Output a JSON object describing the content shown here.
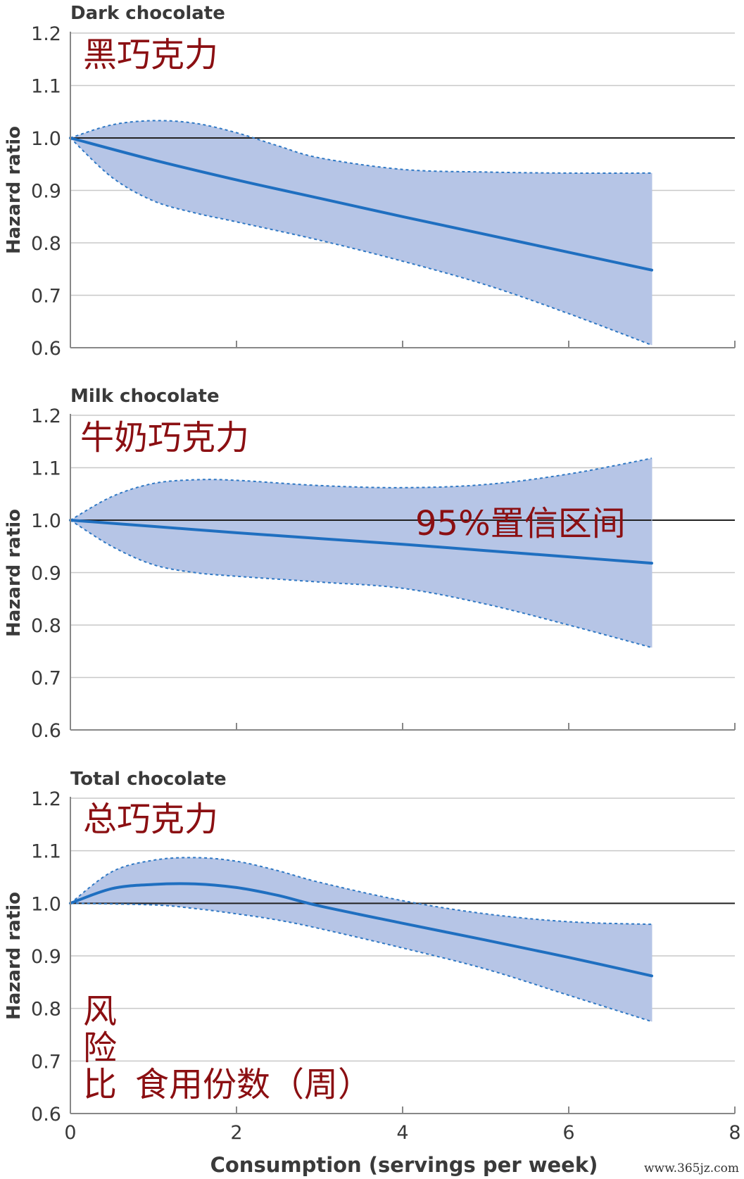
{
  "colors": {
    "band_fill": "#b6c5e6",
    "ci_line": "#2f78c4",
    "estimate_line": "#1f6fc0",
    "reference_line": "#222222",
    "grid": "#c8c8c8",
    "axis": "#888888",
    "text": "#3a3a3a",
    "annotation": "#8b0f12"
  },
  "x_axis": {
    "label": "Consumption (servings per week)",
    "range": [
      0,
      8
    ],
    "ticks": [
      0,
      2,
      4,
      6,
      8
    ],
    "tick_labels": [
      "0",
      "2",
      "4",
      "6",
      "8"
    ]
  },
  "watermark": "www.365jz.com",
  "chart_data": [
    {
      "type": "line",
      "title": "Dark chocolate",
      "annotation": "黑巧克力",
      "xlabel": "",
      "ylabel": "Hazard ratio",
      "xlim": [
        0,
        8
      ],
      "ylim": [
        0.6,
        1.2
      ],
      "yticks": [
        0.6,
        0.7,
        0.8,
        0.9,
        1.0,
        1.1,
        1.2
      ],
      "ytick_labels": [
        "0.6",
        "0.7",
        "0.8",
        "0.9",
        "1.0",
        "1.1",
        "1.2"
      ],
      "reference_line": 1.0,
      "grid": true,
      "estimate": {
        "x": [
          0,
          1,
          2,
          3,
          4,
          5,
          6,
          7
        ],
        "y": [
          1.0,
          0.958,
          0.92,
          0.885,
          0.85,
          0.816,
          0.782,
          0.748
        ]
      },
      "ci_upper": {
        "x": [
          0,
          0.5,
          1,
          1.5,
          2,
          2.5,
          3,
          4,
          5,
          6,
          7
        ],
        "y": [
          1.0,
          1.025,
          1.033,
          1.028,
          1.01,
          0.985,
          0.962,
          0.94,
          0.935,
          0.933,
          0.933
        ]
      },
      "ci_lower": {
        "x": [
          0,
          0.5,
          1,
          1.5,
          2,
          3,
          4,
          5,
          6,
          7
        ],
        "y": [
          1.0,
          0.925,
          0.88,
          0.857,
          0.84,
          0.805,
          0.765,
          0.72,
          0.665,
          0.605
        ]
      }
    },
    {
      "type": "line",
      "title": "Milk chocolate",
      "annotation": "牛奶巧克力",
      "annotation2": "95%置信区间",
      "xlabel": "",
      "ylabel": "Hazard ratio",
      "xlim": [
        0,
        8
      ],
      "ylim": [
        0.6,
        1.2
      ],
      "yticks": [
        0.6,
        0.7,
        0.8,
        0.9,
        1.0,
        1.1,
        1.2
      ],
      "ytick_labels": [
        "0.6",
        "0.7",
        "0.8",
        "0.9",
        "1.0",
        "1.1",
        "1.2"
      ],
      "reference_line": 1.0,
      "grid": true,
      "estimate": {
        "x": [
          0,
          1,
          2,
          3,
          4,
          5,
          6,
          7
        ],
        "y": [
          1.0,
          0.988,
          0.976,
          0.965,
          0.954,
          0.942,
          0.93,
          0.918
        ]
      },
      "ci_upper": {
        "x": [
          0,
          0.5,
          1,
          1.5,
          2,
          3,
          4,
          5,
          6,
          7
        ],
        "y": [
          1.0,
          1.045,
          1.07,
          1.077,
          1.076,
          1.066,
          1.062,
          1.068,
          1.088,
          1.118
        ]
      },
      "ci_lower": {
        "x": [
          0,
          0.5,
          1,
          1.5,
          2,
          3,
          4,
          5,
          6,
          7
        ],
        "y": [
          1.0,
          0.95,
          0.915,
          0.9,
          0.893,
          0.882,
          0.87,
          0.84,
          0.8,
          0.757
        ]
      }
    },
    {
      "type": "line",
      "title": "Total chocolate",
      "annotation": "总巧克力",
      "annotation_lines": [
        "风",
        "险",
        "比"
      ],
      "annotation_x": "食用份数（周）",
      "xlabel": "Consumption (servings per week)",
      "ylabel": "Hazard ratio",
      "xlim": [
        0,
        8
      ],
      "ylim": [
        0.6,
        1.2
      ],
      "yticks": [
        0.6,
        0.7,
        0.8,
        0.9,
        1.0,
        1.1,
        1.2
      ],
      "ytick_labels": [
        "0.6",
        "0.7",
        "0.8",
        "0.9",
        "1.0",
        "1.1",
        "1.2"
      ],
      "reference_line": 1.0,
      "grid": true,
      "estimate": {
        "x": [
          0,
          0.5,
          1,
          1.5,
          2,
          2.5,
          3,
          4,
          5,
          6,
          7
        ],
        "y": [
          1.0,
          1.028,
          1.036,
          1.037,
          1.03,
          1.015,
          0.995,
          0.962,
          0.93,
          0.897,
          0.862
        ]
      },
      "ci_upper": {
        "x": [
          0,
          0.5,
          1,
          1.5,
          2,
          2.5,
          3,
          4,
          5,
          6,
          7
        ],
        "y": [
          1.0,
          1.06,
          1.082,
          1.087,
          1.08,
          1.062,
          1.04,
          1.005,
          0.98,
          0.965,
          0.96
        ]
      },
      "ci_lower": {
        "x": [
          0,
          1,
          1.5,
          2,
          2.5,
          3,
          4,
          5,
          6,
          7
        ],
        "y": [
          1.0,
          0.997,
          0.99,
          0.98,
          0.968,
          0.952,
          0.915,
          0.875,
          0.825,
          0.775
        ]
      }
    }
  ]
}
